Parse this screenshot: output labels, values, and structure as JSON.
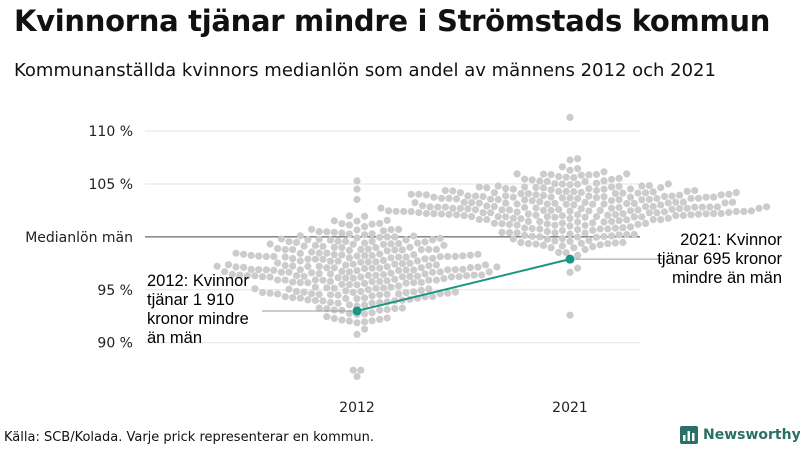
{
  "title": "Kvinnorna tjänar mindre i Strömstads kommun",
  "subtitle": "Kommunanställda kvinnors medianlön som andel av männens 2012 och 2021",
  "source": "Källa: SCB/Kolada. Varje prick representerar en kommun.",
  "brand": "Newsworthy",
  "colors": {
    "dots": "#cccccc",
    "highlight": "#1a9483",
    "grid": "#e3e3e3",
    "reference": "#444444",
    "brand": "#2a6f68"
  },
  "chart_data": {
    "type": "scatter",
    "style": "beeswarm",
    "categories": [
      "2012",
      "2021"
    ],
    "ylim": [
      86,
      112
    ],
    "yticks": [
      {
        "value": 90,
        "label": "90 %"
      },
      {
        "value": 95,
        "label": "95 %"
      },
      {
        "value": 100,
        "label": "Medianlön män"
      },
      {
        "value": 105,
        "label": "105 %"
      },
      {
        "value": 110,
        "label": "110 %"
      }
    ],
    "reference_value": 100,
    "highlight_series": {
      "x": [
        "2012",
        "2021"
      ],
      "values": [
        93.0,
        97.9
      ]
    },
    "annotations": [
      {
        "category": "2012",
        "value": 93.0,
        "side": "left",
        "lines": [
          "2012: Kvinnor",
          "tjänar 1 910",
          "kronor mindre",
          "än män"
        ]
      },
      {
        "category": "2021",
        "value": 97.9,
        "side": "right",
        "lines": [
          "2021: Kvinnor",
          "tjänar 695 kronor",
          "mindre än män"
        ]
      }
    ],
    "distribution": [
      {
        "category": "2012",
        "median": 96.9,
        "spread": 2.3,
        "min": 86.8,
        "max": 105.3,
        "count": 290
      },
      {
        "category": "2021",
        "median": 102.4,
        "spread": 2.0,
        "min": 92.6,
        "max": 111.3,
        "count": 290
      }
    ],
    "grid": true
  }
}
